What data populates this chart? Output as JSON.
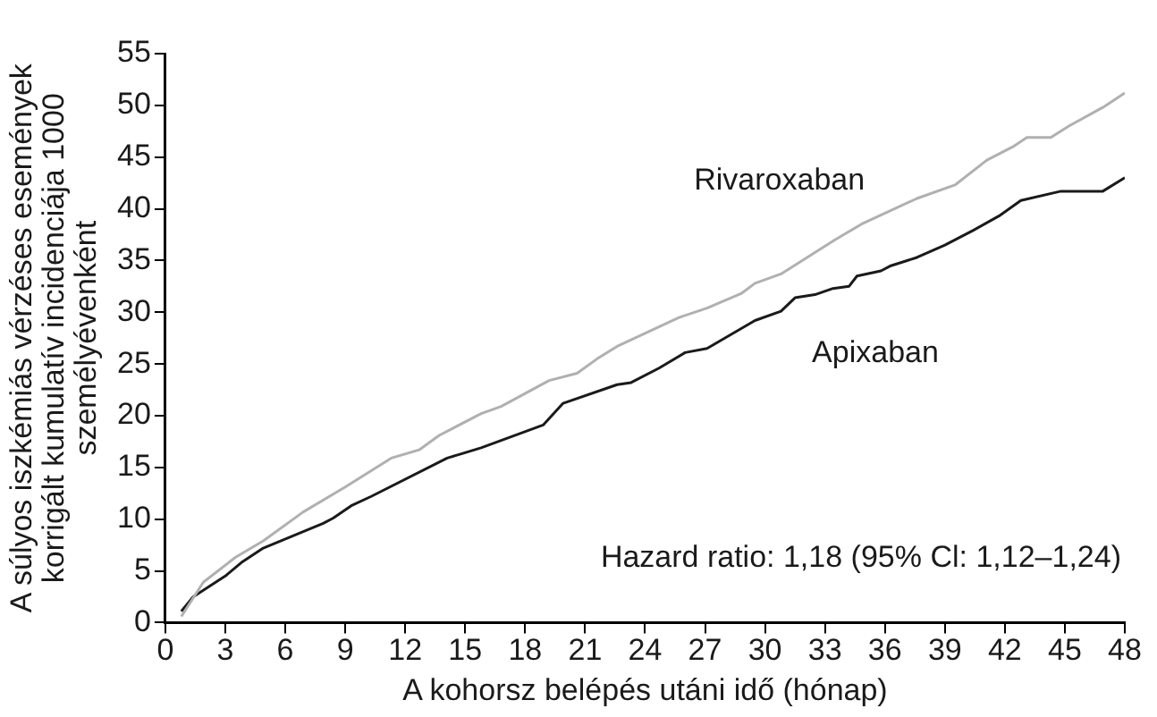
{
  "chart_data": {
    "type": "line",
    "xlabel": "A kohorsz belépés utáni idő (hónap)",
    "ylabel": "A súlyos iszkémiás vérzéses események korrigált kumulatív incidenciája 1000 személyévenként",
    "xlim": [
      0,
      48
    ],
    "xticks": [
      0,
      3,
      6,
      9,
      12,
      15,
      18,
      21,
      24,
      27,
      30,
      33,
      36,
      39,
      42,
      45,
      48
    ],
    "ylim": [
      0,
      55
    ],
    "yticks": [
      0,
      5,
      10,
      15,
      20,
      25,
      30,
      35,
      40,
      45,
      50,
      55
    ],
    "grid": false,
    "legend": false,
    "marker": "none",
    "line_style": "solid",
    "series": [
      {
        "name": "Rivaroxaban",
        "color": "#b0b0b0",
        "x": [
          0.8,
          1.9,
          3.5,
          4.9,
          6.9,
          9,
          11.3,
          12.7,
          13.7,
          15.8,
          16.8,
          19.2,
          20.6,
          21.6,
          22.6,
          25.7,
          27.1,
          28.8,
          29.5,
          30.8,
          33.5,
          34.9,
          37.6,
          39.5,
          41.1,
          42.4,
          43.1,
          44.3,
          45.2,
          46.9,
          48
        ],
        "values": [
          0.6,
          3.9,
          6.3,
          7.9,
          10.7,
          13.1,
          15.9,
          16.7,
          18.1,
          20.2,
          20.9,
          23.4,
          24.1,
          25.5,
          26.7,
          29.5,
          30.4,
          31.8,
          32.8,
          33.7,
          37.0,
          38.6,
          41.0,
          42.3,
          44.7,
          46.0,
          46.9,
          46.9,
          48.0,
          49.8,
          51.2
        ]
      },
      {
        "name": "Apixaban",
        "color": "#1a1a1a",
        "x": [
          0.8,
          1.4,
          3,
          3.8,
          4.9,
          7.9,
          8.4,
          9.3,
          10.3,
          14.1,
          15.8,
          18.9,
          19.9,
          22.6,
          23.3,
          24.7,
          26,
          27.1,
          29.5,
          30.8,
          31.5,
          32.5,
          33.4,
          34.2,
          34.6,
          35.8,
          36.3,
          37.6,
          39,
          40.4,
          41.7,
          42.8,
          44.8,
          46.9,
          48
        ],
        "values": [
          1.1,
          2.5,
          4.5,
          5.8,
          7.2,
          9.6,
          10.1,
          11.3,
          12.2,
          15.9,
          16.9,
          19.1,
          21.2,
          23.0,
          23.2,
          24.6,
          26.1,
          26.5,
          29.2,
          30.1,
          31.4,
          31.7,
          32.3,
          32.5,
          33.5,
          34.0,
          34.5,
          35.3,
          36.5,
          37.9,
          39.3,
          40.8,
          41.7,
          41.7,
          43.0
        ]
      }
    ],
    "annotations": [
      "Hazard ratio: 1,18 (95% Cl: 1,12–1,24)"
    ]
  }
}
